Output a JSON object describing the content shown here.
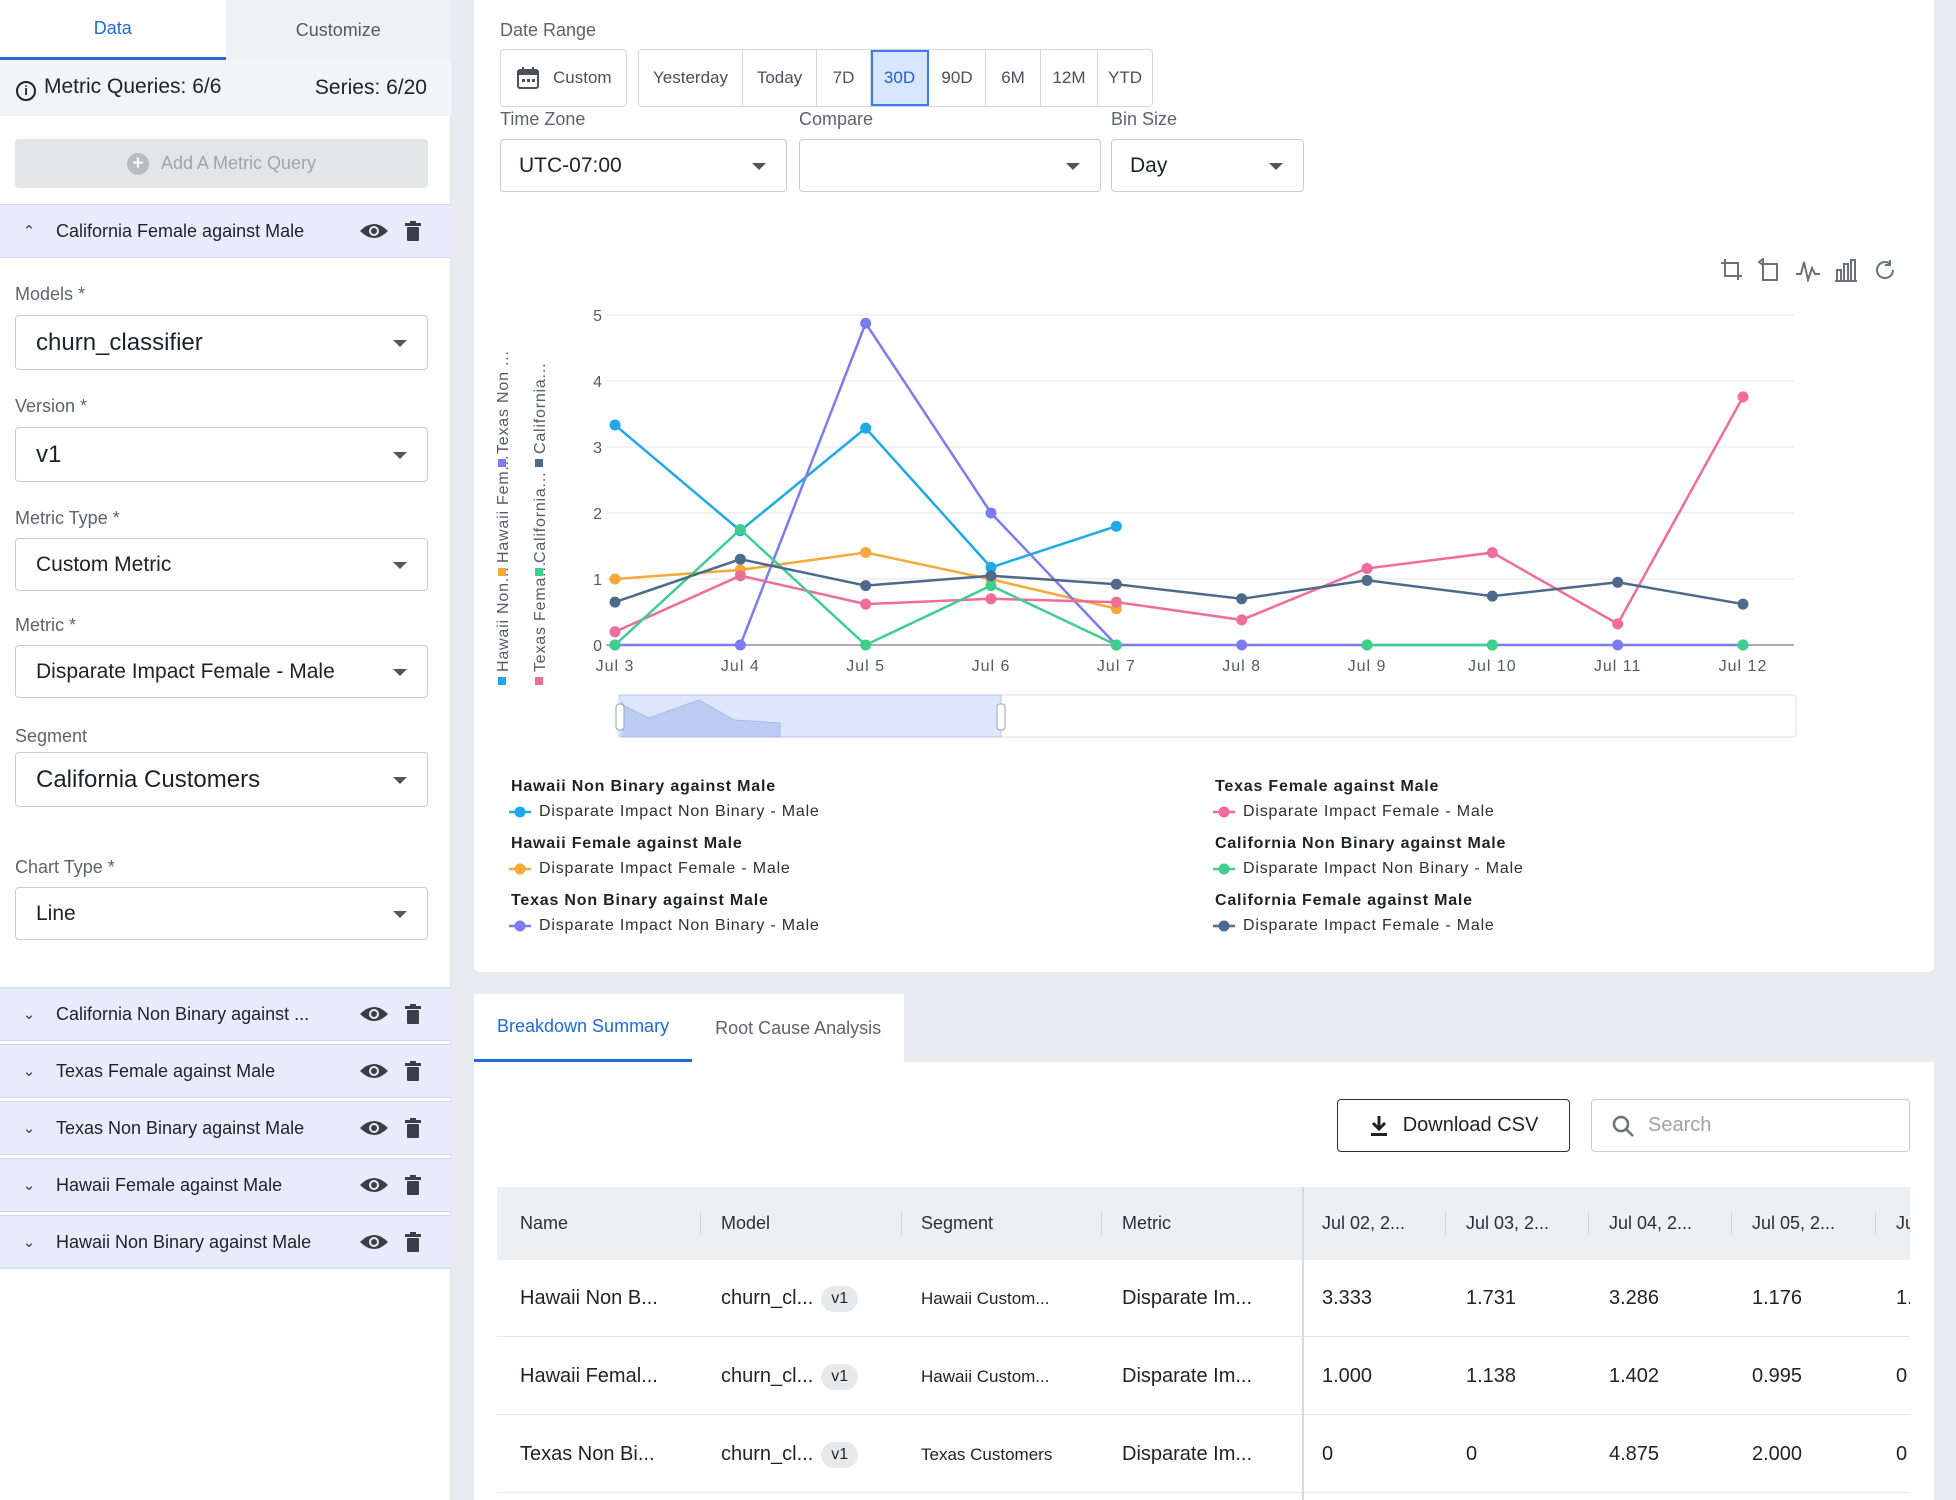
{
  "left_panel": {
    "tabs": [
      "Data",
      "Customize"
    ],
    "metric_queries": "Metric Queries: 6/6",
    "series": "Series: 6/20",
    "add_query_label": "Add A Metric Query",
    "expanded_query": "California Female against Male",
    "fields": {
      "models_label": "Models *",
      "models_value": "churn_classifier",
      "version_label": "Version *",
      "version_value": "v1",
      "metric_type_label": "Metric Type *",
      "metric_type_value": "Custom Metric",
      "metric_label": "Metric *",
      "metric_value": "Disparate Impact Female - Male",
      "segment_label": "Segment",
      "segment_value": "California Customers",
      "chart_type_label": "Chart Type *",
      "chart_type_value": "Line"
    },
    "collapsed_queries": [
      "California Non Binary against ...",
      "Texas Female against Male",
      "Texas Non Binary against Male",
      "Hawaii Female against Male",
      "Hawaii Non Binary against Male"
    ]
  },
  "controls": {
    "date_range_label": "Date Range",
    "custom_label": "Custom",
    "ranges": [
      "Yesterday",
      "Today",
      "7D",
      "30D",
      "90D",
      "6M",
      "12M",
      "YTD"
    ],
    "active_range": "30D",
    "time_zone_label": "Time Zone",
    "time_zone_value": "UTC-07:00",
    "compare_label": "Compare",
    "compare_value": "",
    "bin_size_label": "Bin Size",
    "bin_size_value": "Day"
  },
  "chart_data": {
    "type": "line",
    "x": [
      "Jul 3",
      "Jul 4",
      "Jul 5",
      "Jul 6",
      "Jul 7",
      "Jul 8",
      "Jul 9",
      "Jul 10",
      "Jul 11",
      "Jul 12"
    ],
    "yticks": [
      0,
      1,
      2,
      3,
      4,
      5
    ],
    "ylim": [
      0,
      5
    ],
    "grid": true,
    "y_axis_legend_rotated": [
      "Hawaii Non...",
      "Hawaii Fem...",
      "Texas Non ...",
      "Texas Fema...",
      "California...",
      "California..."
    ],
    "series": [
      {
        "name": "Hawaii Non Binary against Male",
        "metric": "Disparate Impact Non Binary - Male",
        "color": "#1fa9e8",
        "values": [
          3.333,
          1.731,
          3.286,
          1.176,
          1.8,
          null,
          null,
          null,
          null,
          null
        ]
      },
      {
        "name": "Hawaii Female against Male",
        "metric": "Disparate Impact Female - Male",
        "color": "#f5a936",
        "values": [
          1.0,
          1.138,
          1.402,
          0.995,
          0.55,
          null,
          null,
          null,
          null,
          null
        ]
      },
      {
        "name": "Texas Non Binary against Male",
        "metric": "Disparate Impact Non Binary - Male",
        "color": "#7b7cf0",
        "values": [
          0,
          0,
          4.875,
          2.0,
          0,
          0,
          0,
          0,
          0,
          0
        ]
      },
      {
        "name": "Texas Female against Male",
        "metric": "Disparate Impact Female - Male",
        "color": "#f06c9b",
        "values": [
          0.2,
          1.05,
          0.62,
          0.7,
          0.65,
          0.38,
          1.16,
          1.4,
          0.32,
          3.76
        ]
      },
      {
        "name": "California Non Binary against Male",
        "metric": "Disparate Impact Non Binary - Male",
        "color": "#3ecf8e",
        "values": [
          0,
          1.75,
          0,
          0.9,
          0,
          null,
          0,
          0,
          null,
          0
        ]
      },
      {
        "name": "California Female against Male",
        "metric": "Disparate Impact Female - Male",
        "color": "#4d6a8a",
        "values": [
          0.65,
          1.3,
          0.9,
          1.05,
          0.92,
          0.7,
          0.98,
          0.74,
          0.95,
          0.62
        ]
      }
    ]
  },
  "bottom": {
    "tabs": [
      "Breakdown Summary",
      "Root Cause Analysis"
    ],
    "download_label": "Download CSV",
    "search_placeholder": "Search",
    "columns": [
      "Name",
      "Model",
      "Segment",
      "Metric",
      "Jul 02, 2...",
      "Jul 03, 2...",
      "Jul 04, 2...",
      "Jul 05, 2...",
      "Ju"
    ],
    "rows": [
      {
        "name": "Hawaii Non B...",
        "model": "churn_cl...",
        "version": "v1",
        "segment": "Hawaii Custom...",
        "metric": "Disparate Im...",
        "v": [
          "3.333",
          "1.731",
          "3.286",
          "1.176",
          "1."
        ]
      },
      {
        "name": "Hawaii Femal...",
        "model": "churn_cl...",
        "version": "v1",
        "segment": "Hawaii Custom...",
        "metric": "Disparate Im...",
        "v": [
          "1.000",
          "1.138",
          "1.402",
          "0.995",
          "0"
        ]
      },
      {
        "name": "Texas Non Bi...",
        "model": "churn_cl...",
        "version": "v1",
        "segment": "Texas Customers",
        "metric": "Disparate Im...",
        "v": [
          "0",
          "0",
          "4.875",
          "2.000",
          "0"
        ]
      }
    ]
  }
}
